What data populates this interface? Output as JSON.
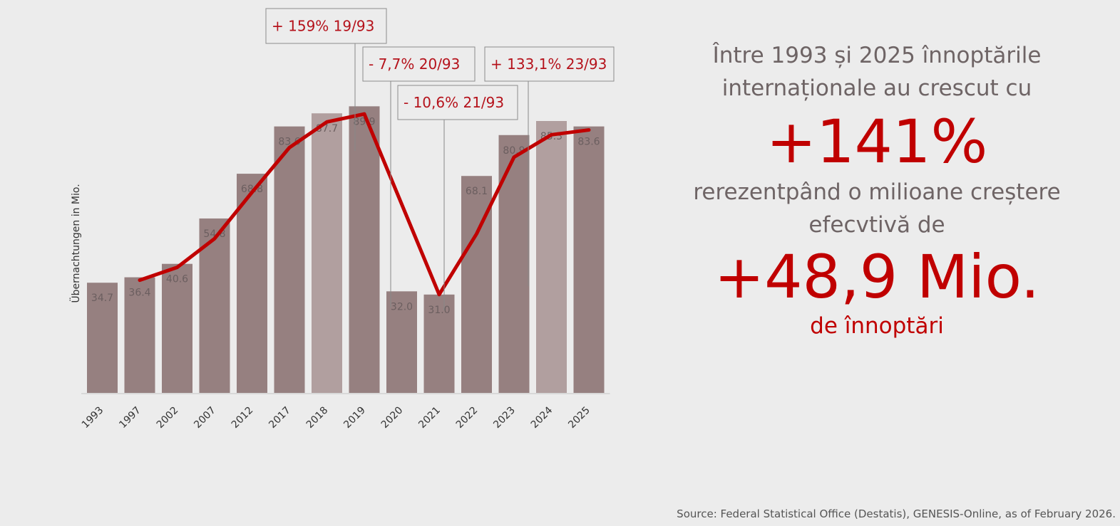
{
  "chart_data": {
    "type": "bar",
    "ylabel": "Übernachtungen in Mio.",
    "categories": [
      "1993",
      "1997",
      "2002",
      "2007",
      "2012",
      "2017",
      "2018",
      "2019",
      "2020",
      "2021",
      "2022",
      "2023",
      "2024",
      "2025"
    ],
    "values": [
      34.7,
      36.4,
      40.6,
      54.8,
      68.8,
      83.6,
      87.7,
      89.9,
      32.0,
      31.0,
      68.1,
      80.9,
      85.3,
      83.6
    ],
    "value_labels": [
      "34.7",
      "36.4",
      "40.6",
      "54.8",
      "68.8",
      "83.6",
      "87.7",
      "89.9",
      "32.0",
      "31.0",
      "68.1",
      "80.9",
      "85.3",
      "83.6"
    ],
    "highlighted_categories": [
      "2018",
      "2024"
    ],
    "trend_line": {
      "categories": [
        "1997",
        "2002",
        "2007",
        "2012",
        "2017",
        "2018",
        "2019",
        "2021",
        "2022",
        "2023",
        "2024",
        "2025"
      ],
      "values": [
        35.5,
        39.5,
        48.5,
        63.0,
        77.0,
        85.0,
        87.5,
        31.0,
        50.0,
        74.0,
        81.0,
        82.5
      ]
    },
    "ylim": [
      0,
      100
    ],
    "grid": false,
    "callouts": [
      {
        "text": "+ 159% 19/93",
        "category": "2019"
      },
      {
        "text": "- 7,7% 20/93",
        "category": "2020"
      },
      {
        "text": "- 10,6% 21/93",
        "category": "2021"
      },
      {
        "text": "+ 133,1% 23/93",
        "category": "2023"
      }
    ],
    "colors": {
      "bar": "#968080",
      "bar_highlight": "#b19f9f",
      "line": "#c00000",
      "callout_text": "#b5121b"
    }
  },
  "summary": {
    "intro": "Între 1993 și 2025 înnoptările internaționale au crescut cu",
    "percent": "+141%",
    "middle": "rerezentpând o  milioane creștere efecvtivă de",
    "absolute": "+48,9 Mio.",
    "outro": "de înnoptări"
  },
  "source": "Source: Federal Statistical Office (Destatis), GENESIS-Online, as of February 2026."
}
